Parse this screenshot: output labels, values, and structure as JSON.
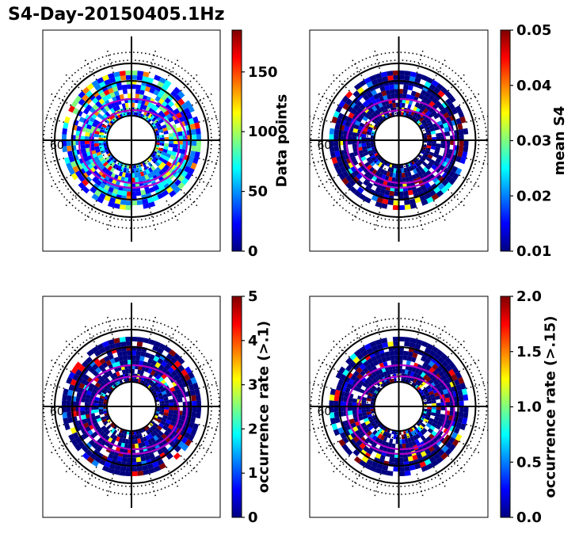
{
  "figure": {
    "title": "S4-Day-20150405.1Hz",
    "colors": {
      "jet": [
        "#00007f",
        "#0000ff",
        "#007fff",
        "#00ffff",
        "#7fff7f",
        "#ffff00",
        "#ff7f00",
        "#ff0000",
        "#7f0000"
      ],
      "grid": "#000000",
      "oval": "#b000c8"
    }
  },
  "chart_data": [
    {
      "type": "polar-heatmap",
      "panel": "top-left",
      "colorbar": {
        "label": "Data points",
        "vmin": 0,
        "vmax": 185,
        "ticks": [
          0,
          50,
          100,
          150
        ],
        "tick_labels": [
          "0",
          "50",
          "100",
          "150"
        ]
      },
      "lat_label": "60",
      "fill": "mixed"
    },
    {
      "type": "polar-heatmap",
      "panel": "top-right",
      "colorbar": {
        "label": "mean S4",
        "vmin": 0.01,
        "vmax": 0.05,
        "ticks": [
          0.01,
          0.02,
          0.03,
          0.04,
          0.05
        ],
        "tick_labels": [
          "0.01",
          "0.02",
          "0.03",
          "0.04",
          "0.05"
        ]
      },
      "lat_label": "60",
      "fill": "low"
    },
    {
      "type": "polar-heatmap",
      "panel": "bottom-left",
      "colorbar": {
        "label": "occurrence rate (>.1)",
        "vmin": 0,
        "vmax": 5,
        "ticks": [
          0,
          1,
          2,
          3,
          4,
          5
        ],
        "tick_labels": [
          "0",
          "1",
          "2",
          "3",
          "4",
          "5"
        ]
      },
      "lat_label": "60",
      "fill": "low"
    },
    {
      "type": "polar-heatmap",
      "panel": "bottom-right",
      "colorbar": {
        "label": "occurrence rate (>.15)",
        "vmin": 0,
        "vmax": 2,
        "ticks": [
          0,
          0.5,
          1,
          1.5,
          2
        ],
        "tick_labels": [
          "0.0",
          "0.5",
          "1.0",
          "1.5",
          "2.0"
        ]
      },
      "lat_label": "60",
      "fill": "low"
    }
  ]
}
